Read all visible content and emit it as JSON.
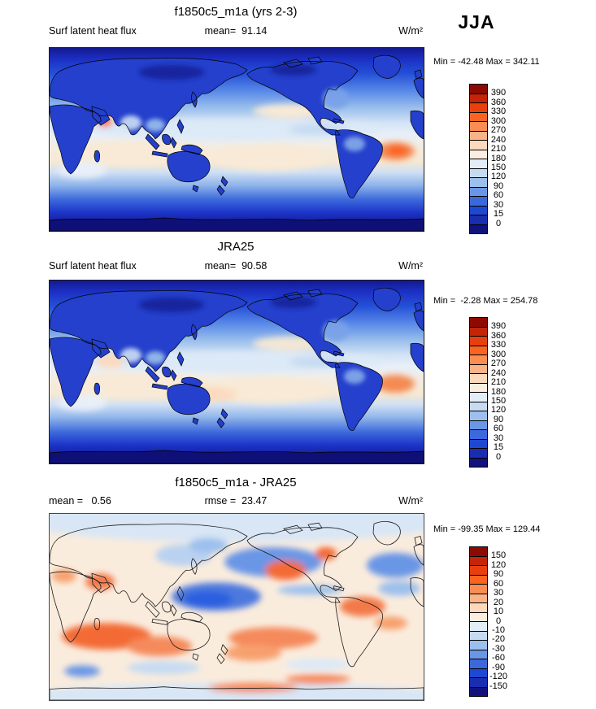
{
  "season_label": "JJA",
  "panels": [
    {
      "title": "f1850c5_m1a (yrs 2-3)",
      "row": {
        "left": "Surf latent heat flux",
        "center": "mean=  91.14",
        "right": "W/m²"
      },
      "minmax": "Min = -42.48 Max = 342.11",
      "colorbar": {
        "labels_top_to_bottom": [
          "390",
          "360",
          "330",
          "300",
          "270",
          "240",
          "210",
          "180",
          "150",
          "120",
          "90",
          "60",
          "30",
          "15",
          "0"
        ],
        "colors_top_to_bottom": [
          "#8d0a02",
          "#c42408",
          "#e7400e",
          "#fb6420",
          "#fb8c52",
          "#fcb287",
          "#fcd9bd",
          "#fbeee0",
          "#e2edf8",
          "#c6dbf2",
          "#9cc0ec",
          "#6b96e6",
          "#3c68dc",
          "#1f48d2",
          "#1a2cb0",
          "#12127c"
        ]
      }
    },
    {
      "title": "JRA25",
      "row": {
        "left": "Surf latent heat flux",
        "center": "mean=  90.58",
        "right": "W/m²"
      },
      "minmax": "Min =  -2.28 Max = 254.78",
      "colorbar": {
        "labels_top_to_bottom": [
          "390",
          "360",
          "330",
          "300",
          "270",
          "240",
          "210",
          "180",
          "150",
          "120",
          "90",
          "60",
          "30",
          "15",
          "0"
        ],
        "colors_top_to_bottom": [
          "#8d0a02",
          "#c42408",
          "#e7400e",
          "#fb6420",
          "#fb8c52",
          "#fcb287",
          "#fcd9bd",
          "#fbeee0",
          "#e2edf8",
          "#c6dbf2",
          "#9cc0ec",
          "#6b96e6",
          "#3c68dc",
          "#1f48d2",
          "#1a2cb0",
          "#12127c"
        ]
      }
    },
    {
      "title": "f1850c5_m1a - JRA25",
      "row": {
        "left": "mean =   0.56",
        "center": "rmse =  23.47",
        "right": "W/m²"
      },
      "minmax": "Min = -99.35 Max = 129.44",
      "colorbar": {
        "labels_top_to_bottom": [
          "150",
          "120",
          "90",
          "60",
          "30",
          "20",
          "10",
          "0",
          "-10",
          "-20",
          "-30",
          "-60",
          "-90",
          "-120",
          "-150"
        ],
        "colors_top_to_bottom": [
          "#8d0a02",
          "#c42408",
          "#e7400e",
          "#fb6420",
          "#fb8c52",
          "#fcb287",
          "#fcd9bd",
          "#fbeee0",
          "#e2edf8",
          "#c6dbf2",
          "#9cc0ec",
          "#6b96e6",
          "#3c68dc",
          "#1f48d2",
          "#1a2cb0",
          "#12127c"
        ]
      }
    }
  ],
  "chart_data": [
    {
      "type": "heatmap",
      "subtype": "filled-contour-global-map",
      "title": "f1850c5_m1a (yrs 2-3)",
      "variable": "Surf latent heat flux",
      "season": "JJA",
      "units": "W/m²",
      "stats": {
        "mean": 91.14,
        "min": -42.48,
        "max": 342.11
      },
      "contour_levels": [
        0,
        15,
        30,
        60,
        90,
        120,
        150,
        180,
        210,
        240,
        270,
        300,
        330,
        360,
        390
      ],
      "palette_low_to_high": [
        "#12127c",
        "#1a2cb0",
        "#1f48d2",
        "#3c68dc",
        "#6b96e6",
        "#9cc0ec",
        "#c6dbf2",
        "#e2edf8",
        "#fbeee0",
        "#fcd9bd",
        "#fcb287",
        "#fb8c52",
        "#fb6420",
        "#e7400e",
        "#c42408",
        "#8d0a02"
      ],
      "projection": "cylindrical equidistant, Pacific-centered (0E–360E)",
      "legend_position": "right"
    },
    {
      "type": "heatmap",
      "subtype": "filled-contour-global-map",
      "title": "JRA25",
      "variable": "Surf latent heat flux",
      "season": "JJA",
      "units": "W/m²",
      "stats": {
        "mean": 90.58,
        "min": -2.28,
        "max": 254.78
      },
      "contour_levels": [
        0,
        15,
        30,
        60,
        90,
        120,
        150,
        180,
        210,
        240,
        270,
        300,
        330,
        360,
        390
      ],
      "palette_low_to_high": [
        "#12127c",
        "#1a2cb0",
        "#1f48d2",
        "#3c68dc",
        "#6b96e6",
        "#9cc0ec",
        "#c6dbf2",
        "#e2edf8",
        "#fbeee0",
        "#fcd9bd",
        "#fcb287",
        "#fb8c52",
        "#fb6420",
        "#e7400e",
        "#c42408",
        "#8d0a02"
      ],
      "projection": "cylindrical equidistant, Pacific-centered (0E–360E)",
      "legend_position": "right"
    },
    {
      "type": "heatmap",
      "subtype": "filled-contour-global-map-difference",
      "title": "f1850c5_m1a - JRA25",
      "variable": "Surf latent heat flux difference",
      "season": "JJA",
      "units": "W/m²",
      "stats": {
        "mean": 0.56,
        "rmse": 23.47,
        "min": -99.35,
        "max": 129.44
      },
      "contour_levels": [
        -150,
        -120,
        -90,
        -60,
        -30,
        -20,
        -10,
        0,
        10,
        20,
        30,
        60,
        90,
        120,
        150
      ],
      "palette_low_to_high": [
        "#12127c",
        "#1a2cb0",
        "#1f48d2",
        "#3c68dc",
        "#6b96e6",
        "#9cc0ec",
        "#c6dbf2",
        "#e2edf8",
        "#fbeee0",
        "#fcd9bd",
        "#fcb287",
        "#fb8c52",
        "#fb6420",
        "#e7400e",
        "#c42408",
        "#8d0a02"
      ],
      "projection": "cylindrical equidistant, Pacific-centered (0E–360E)",
      "legend_position": "right"
    }
  ]
}
